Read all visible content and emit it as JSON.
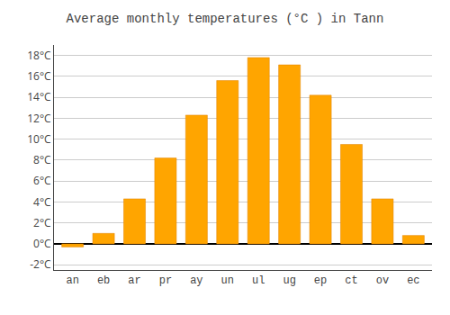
{
  "chart_data": {
    "type": "bar",
    "title": "Average monthly temperatures (°C ) in Tann",
    "categories": [
      "an",
      "eb",
      "ar",
      "pr",
      "ay",
      "un",
      "ul",
      "ug",
      "ep",
      "ct",
      "ov",
      "ec"
    ],
    "values": [
      -0.3,
      1.0,
      4.3,
      8.2,
      12.3,
      15.6,
      17.8,
      17.1,
      14.2,
      9.5,
      4.3,
      0.8
    ],
    "color": "#FFA500",
    "ylim": [
      -2.5,
      19
    ],
    "yticks": [
      {
        "value": -2,
        "label": "-2°C"
      },
      {
        "value": 0,
        "label": "0°C"
      },
      {
        "value": 2,
        "label": "2°C"
      },
      {
        "value": 4,
        "label": "4°C"
      },
      {
        "value": 6,
        "label": "6°C"
      },
      {
        "value": 8,
        "label": "8°C"
      },
      {
        "value": 10,
        "label": "10°C"
      },
      {
        "value": 12,
        "label": "12°C"
      },
      {
        "value": 14,
        "label": "14°C"
      },
      {
        "value": 16,
        "label": "16°C"
      },
      {
        "value": 18,
        "label": "18°C"
      }
    ],
    "grid": true
  }
}
